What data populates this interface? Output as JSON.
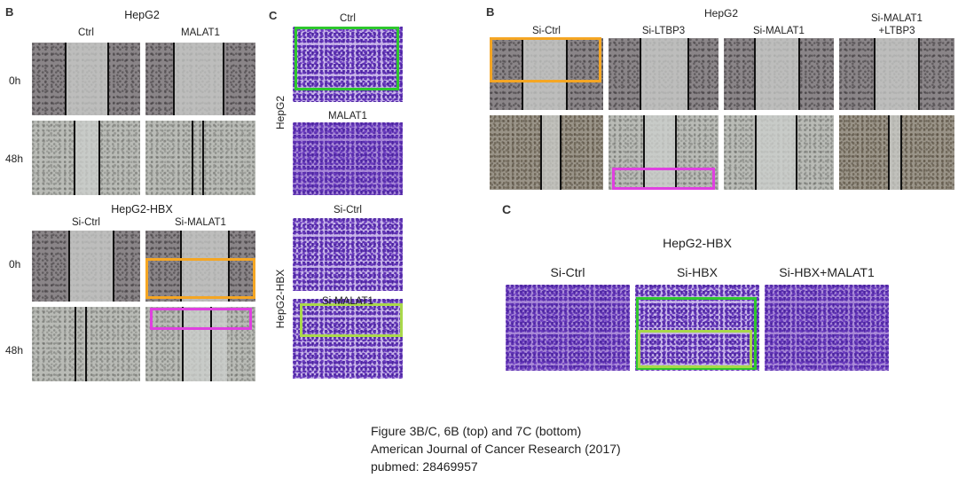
{
  "panels": {
    "left_B": {
      "letter": "B",
      "group1_title": "HepG2",
      "group1_cols": [
        "Ctrl",
        "MALAT1"
      ],
      "group2_title": "HepG2-HBX",
      "group2_cols": [
        "Si-Ctrl",
        "Si-MALAT1"
      ],
      "rows": [
        "0h",
        "48h",
        "0h",
        "48h"
      ]
    },
    "left_C": {
      "letter": "C",
      "labels": [
        "Ctrl",
        "MALAT1",
        "Si-Ctrl",
        "Si-MALAT1"
      ],
      "side_labels": [
        "HepG2",
        "HepG2-HBX"
      ]
    },
    "right_B": {
      "letter": "B",
      "title": "HepG2",
      "cols": [
        "Si-Ctrl",
        "Si-LTBP3",
        "Si-MALAT1",
        "Si-MALAT1\n+LTBP3"
      ],
      "col4_line1": "Si-MALAT1",
      "col4_line2": "+LTBP3"
    },
    "right_C": {
      "letter": "C",
      "title": "HepG2-HBX",
      "cols": [
        "Si-Ctrl",
        "Si-HBX",
        "Si-HBX+MALAT1"
      ]
    }
  },
  "caption": {
    "line1": "Figure 3B/C, 6B (top) and 7C (bottom)",
    "line2": "American Journal of Cancer Research (2017)",
    "line3": "pubmed: 28469957"
  },
  "highlight_colors": {
    "orange": "#f5a623",
    "magenta": "#e040e0",
    "green": "#2ec72e",
    "lime": "#a9d84a"
  }
}
